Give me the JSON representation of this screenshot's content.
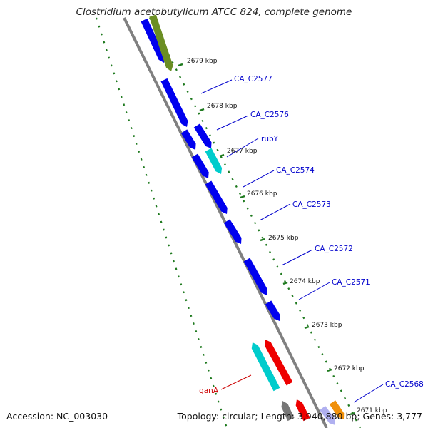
{
  "header": {
    "title": "Clostridium acetobutylicum ATCC 824, complete genome"
  },
  "footer": {
    "accession": "Accession: NC_003030",
    "summary": "Topology: circular; Length: 3,940,880 bp; Genes: 3,777"
  },
  "colors": {
    "background": "#ffffff",
    "gene_blue": "#0000ee",
    "gene_cyan": "#00cccc",
    "gene_olive": "#6b8e23",
    "gene_red": "#ee0000",
    "gene_orange": "#f0900a",
    "gene_gray": "#777777",
    "gene_lilac": "#b0b0f0",
    "tick_green": "#1f7a1f",
    "backbone": "#808080",
    "label_blue": "#0000cc",
    "label_red": "#cc0000"
  },
  "ticks": [
    {
      "label": "2679 kbp"
    },
    {
      "label": "2678 kbp"
    },
    {
      "label": "2677 kbp"
    },
    {
      "label": "2676 kbp"
    },
    {
      "label": "2675 kbp"
    },
    {
      "label": "2674 kbp"
    },
    {
      "label": "2673 kbp"
    },
    {
      "label": "2672 kbp"
    },
    {
      "label": "2671 kbp"
    }
  ],
  "gene_labels": [
    {
      "text": "CA_C2577",
      "color": "label_blue"
    },
    {
      "text": "CA_C2576",
      "color": "label_blue"
    },
    {
      "text": "rubY",
      "color": "label_blue"
    },
    {
      "text": "CA_C2574",
      "color": "label_blue"
    },
    {
      "text": "CA_C2573",
      "color": "label_blue"
    },
    {
      "text": "CA_C2572",
      "color": "label_blue"
    },
    {
      "text": "CA_C2571",
      "color": "label_blue"
    },
    {
      "text": "CA_C2568",
      "color": "label_blue"
    },
    {
      "text": "ganA",
      "color": "label_red"
    }
  ],
  "genes": [
    {
      "color": "gene_blue"
    },
    {
      "color": "gene_olive"
    },
    {
      "color": "gene_blue"
    },
    {
      "color": "gene_blue"
    },
    {
      "color": "gene_blue"
    },
    {
      "color": "gene_blue"
    },
    {
      "color": "gene_cyan"
    },
    {
      "color": "gene_blue"
    },
    {
      "color": "gene_blue"
    },
    {
      "color": "gene_blue"
    },
    {
      "color": "gene_blue"
    },
    {
      "color": "gene_cyan"
    },
    {
      "color": "gene_red"
    },
    {
      "color": "gene_gray"
    },
    {
      "color": "gene_red"
    },
    {
      "color": "gene_lilac"
    },
    {
      "color": "gene_orange"
    }
  ]
}
